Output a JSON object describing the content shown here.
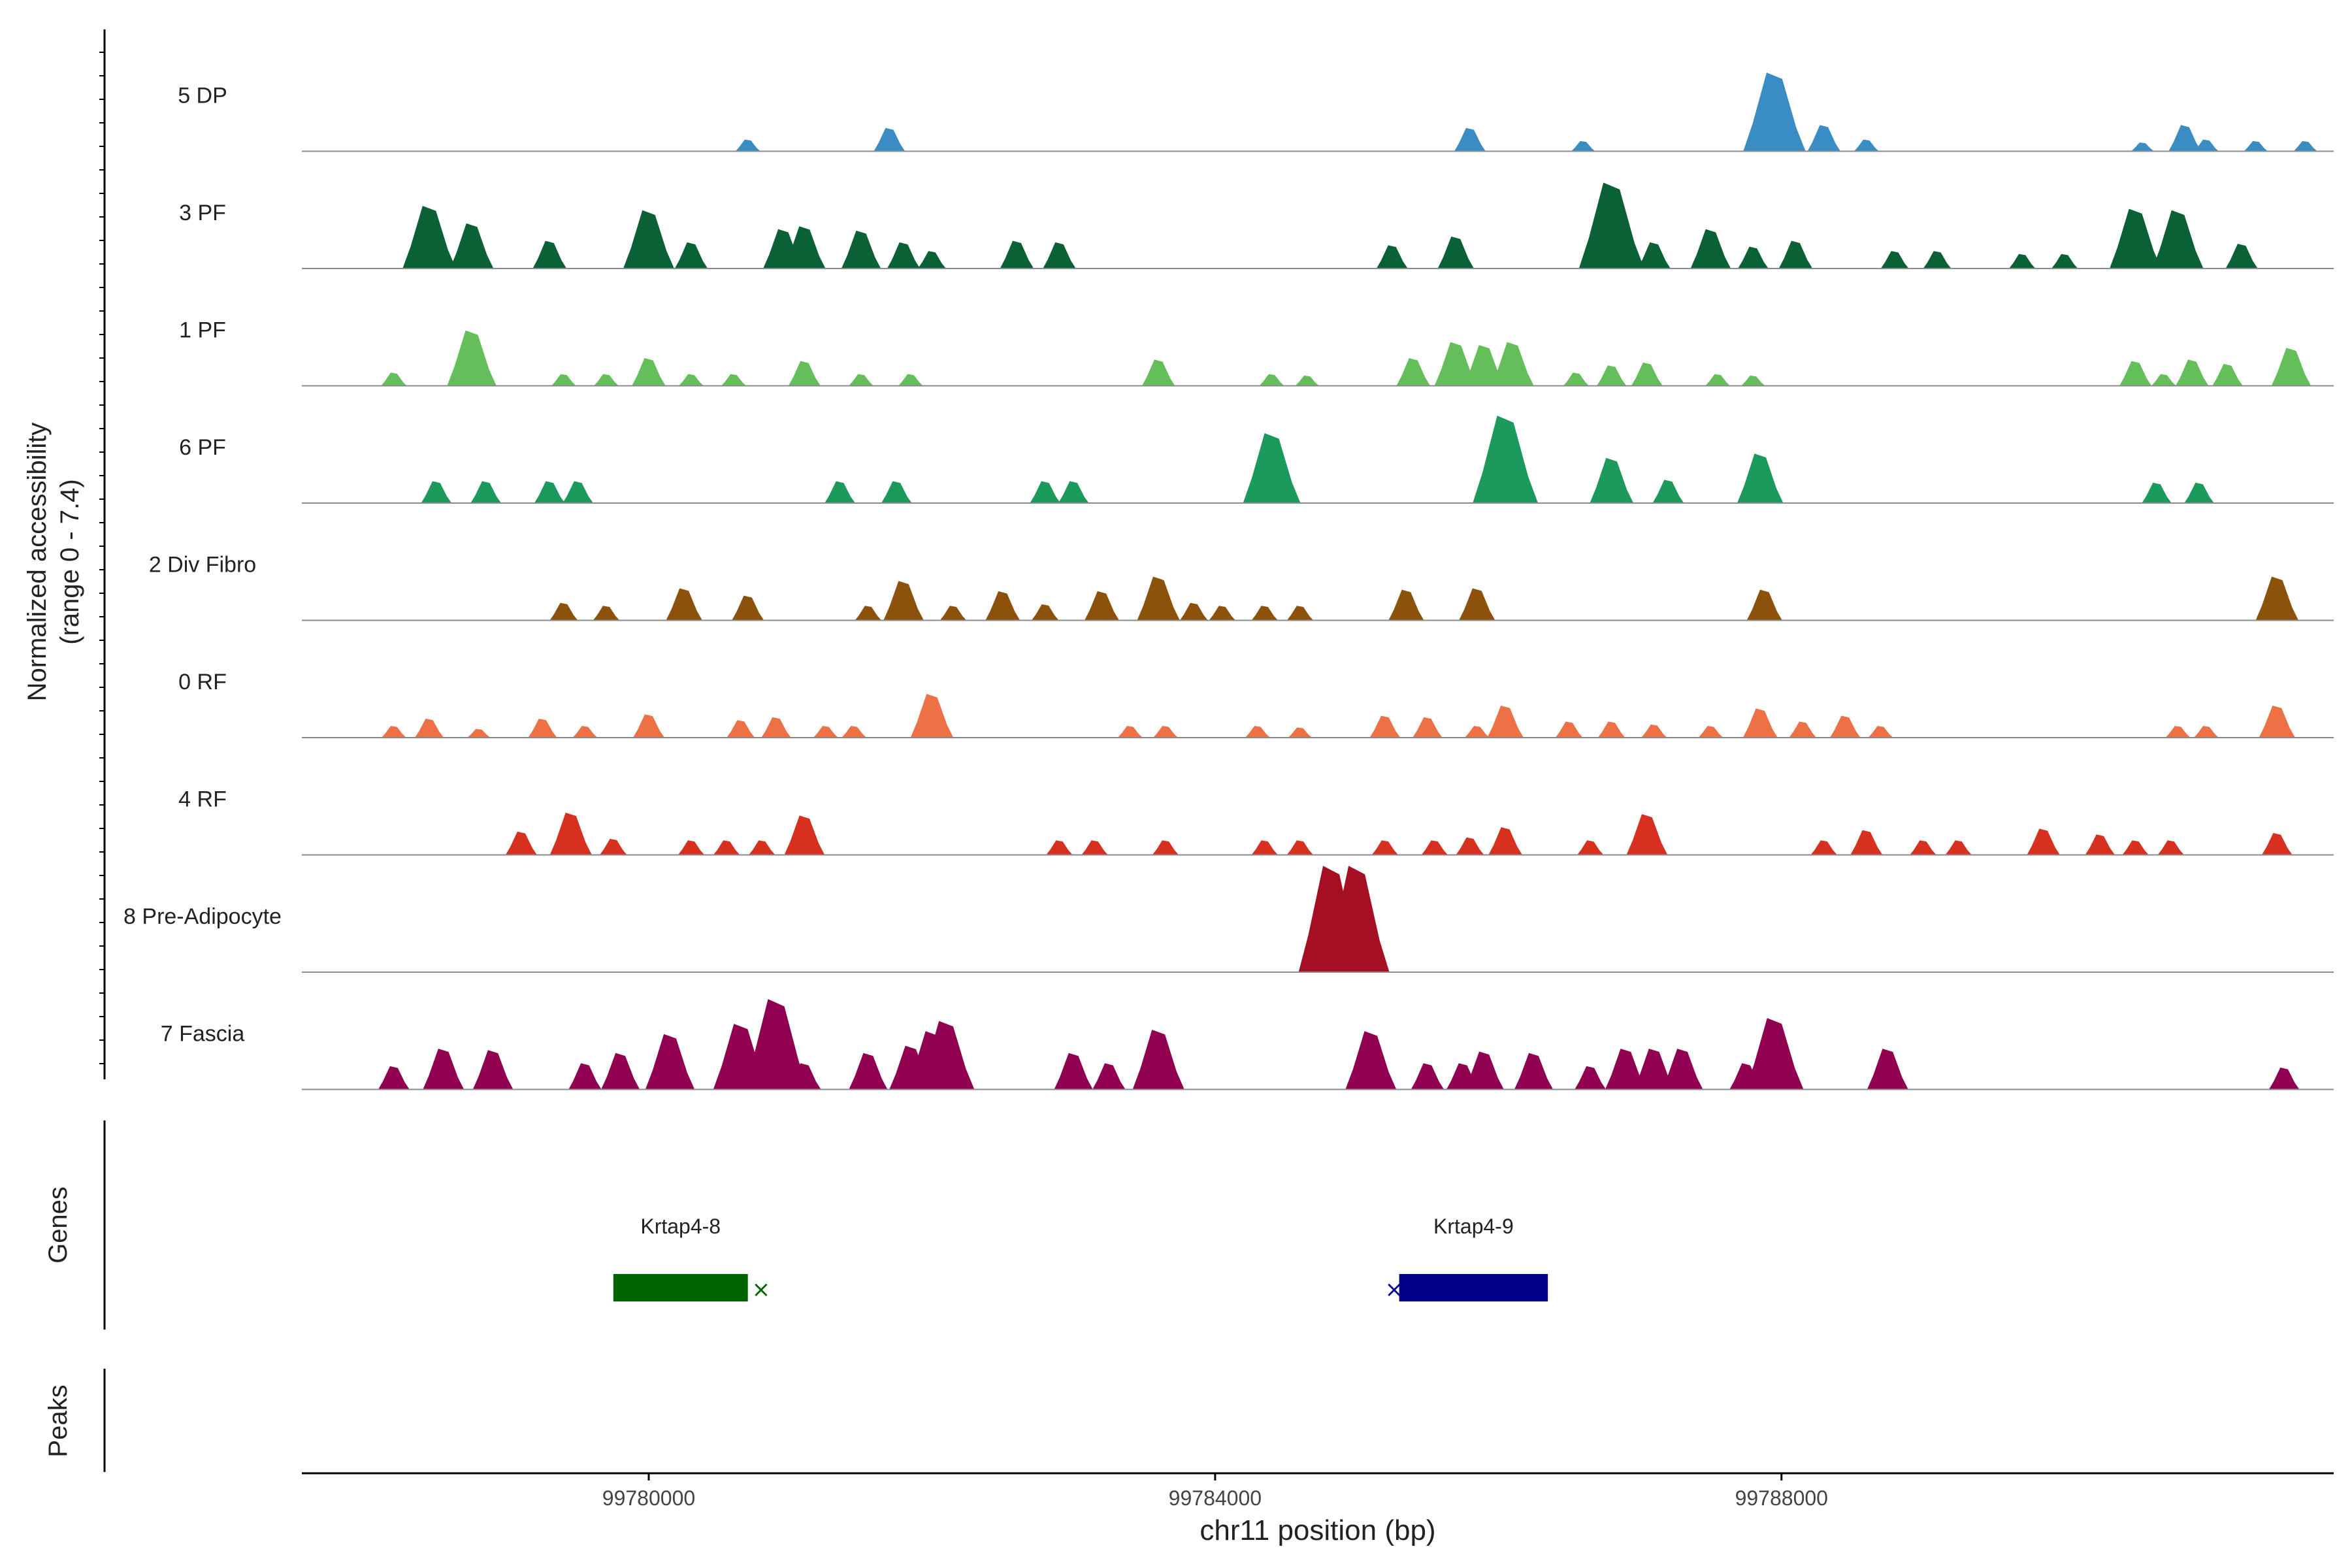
{
  "chart_data": {
    "type": "area",
    "title": "",
    "ylabel_line1": "Normalized accessibility",
    "ylabel_line2": "(range 0 - 7.4)",
    "xlabel": "chr11 position (bp)",
    "xlim": [
      99777550,
      99791900
    ],
    "ylim": [
      0,
      7.4
    ],
    "xticks": [
      99780000,
      99784000,
      99788000
    ],
    "xtick_labels": [
      "99780000",
      "99784000",
      "99788000"
    ],
    "genes_label": "Genes",
    "peaks_label": "Peaks",
    "series": [
      {
        "name": "5 DP",
        "color": "#3A8CC4",
        "peaks": [
          [
            99780700,
            0.8
          ],
          [
            99781700,
            1.6
          ],
          [
            99785800,
            1.6
          ],
          [
            99786600,
            0.7
          ],
          [
            99787950,
            5.4
          ],
          [
            99788300,
            1.8
          ],
          [
            99788600,
            0.8
          ],
          [
            99790550,
            0.6
          ],
          [
            99790850,
            1.8
          ],
          [
            99791000,
            0.8
          ],
          [
            99791350,
            0.7
          ],
          [
            99791700,
            0.7
          ]
        ]
      },
      {
        "name": "3 PF",
        "color": "#0A6135",
        "peaks": [
          [
            99778450,
            4.3
          ],
          [
            99778750,
            3.1
          ],
          [
            99779300,
            1.9
          ],
          [
            99780000,
            4.0
          ],
          [
            99780300,
            1.8
          ],
          [
            99780950,
            2.7
          ],
          [
            99781100,
            2.9
          ],
          [
            99781500,
            2.6
          ],
          [
            99781800,
            1.8
          ],
          [
            99782000,
            1.2
          ],
          [
            99782600,
            1.9
          ],
          [
            99782900,
            1.8
          ],
          [
            99785250,
            1.6
          ],
          [
            99785700,
            2.2
          ],
          [
            99786800,
            5.9
          ],
          [
            99787100,
            1.8
          ],
          [
            99787500,
            2.7
          ],
          [
            99787800,
            1.5
          ],
          [
            99788100,
            1.9
          ],
          [
            99788800,
            1.2
          ],
          [
            99789100,
            1.2
          ],
          [
            99789700,
            1.0
          ],
          [
            99790000,
            1.0
          ],
          [
            99790500,
            4.1
          ],
          [
            99790800,
            4.0
          ],
          [
            99791250,
            1.7
          ]
        ]
      },
      {
        "name": "1 PF",
        "color": "#64BE5A",
        "peaks": [
          [
            99778200,
            0.9
          ],
          [
            99778750,
            3.8
          ],
          [
            99779400,
            0.8
          ],
          [
            99779700,
            0.8
          ],
          [
            99780000,
            1.9
          ],
          [
            99780300,
            0.8
          ],
          [
            99780600,
            0.8
          ],
          [
            99781100,
            1.7
          ],
          [
            99781500,
            0.8
          ],
          [
            99781850,
            0.8
          ],
          [
            99783600,
            1.8
          ],
          [
            99784400,
            0.8
          ],
          [
            99784650,
            0.7
          ],
          [
            99785400,
            1.9
          ],
          [
            99785700,
            3.0
          ],
          [
            99785900,
            2.8
          ],
          [
            99786100,
            3.0
          ],
          [
            99786550,
            0.9
          ],
          [
            99786800,
            1.4
          ],
          [
            99787050,
            1.6
          ],
          [
            99787550,
            0.8
          ],
          [
            99787800,
            0.7
          ],
          [
            99790500,
            1.7
          ],
          [
            99790700,
            0.8
          ],
          [
            99790900,
            1.8
          ],
          [
            99791150,
            1.5
          ],
          [
            99791600,
            2.6
          ]
        ]
      },
      {
        "name": "6 PF",
        "color": "#1C9A5C",
        "peaks": [
          [
            99778500,
            1.5
          ],
          [
            99778850,
            1.5
          ],
          [
            99779300,
            1.5
          ],
          [
            99779500,
            1.5
          ],
          [
            99781350,
            1.5
          ],
          [
            99781750,
            1.5
          ],
          [
            99782800,
            1.5
          ],
          [
            99783000,
            1.5
          ],
          [
            99784400,
            4.8
          ],
          [
            99786050,
            6.0
          ],
          [
            99786800,
            3.1
          ],
          [
            99787200,
            1.6
          ],
          [
            99787850,
            3.4
          ],
          [
            99790650,
            1.4
          ],
          [
            99790950,
            1.4
          ]
        ]
      },
      {
        "name": "2 Div Fibro",
        "color": "#8C510A",
        "peaks": [
          [
            99779400,
            1.2
          ],
          [
            99779700,
            1.0
          ],
          [
            99780250,
            2.2
          ],
          [
            99780700,
            1.7
          ],
          [
            99781550,
            1.0
          ],
          [
            99781800,
            2.7
          ],
          [
            99782150,
            1.0
          ],
          [
            99782500,
            2.0
          ],
          [
            99782800,
            1.1
          ],
          [
            99783200,
            2.0
          ],
          [
            99783600,
            3.0
          ],
          [
            99783850,
            1.2
          ],
          [
            99784050,
            1.0
          ],
          [
            99784350,
            1.0
          ],
          [
            99784600,
            1.0
          ],
          [
            99785350,
            2.1
          ],
          [
            99785850,
            2.2
          ],
          [
            99787880,
            2.1
          ],
          [
            99791500,
            3.0
          ]
        ]
      },
      {
        "name": "0 RF",
        "color": "#EE7045",
        "peaks": [
          [
            99778200,
            0.8
          ],
          [
            99778450,
            1.3
          ],
          [
            99778800,
            0.6
          ],
          [
            99779250,
            1.3
          ],
          [
            99779550,
            0.8
          ],
          [
            99780000,
            1.6
          ],
          [
            99780650,
            1.2
          ],
          [
            99780900,
            1.4
          ],
          [
            99781250,
            0.8
          ],
          [
            99781450,
            0.8
          ],
          [
            99782000,
            3.0
          ],
          [
            99783400,
            0.8
          ],
          [
            99783650,
            0.8
          ],
          [
            99784300,
            0.8
          ],
          [
            99784600,
            0.7
          ],
          [
            99785200,
            1.5
          ],
          [
            99785500,
            1.4
          ],
          [
            99785850,
            0.8
          ],
          [
            99786050,
            2.2
          ],
          [
            99786500,
            1.1
          ],
          [
            99786800,
            1.1
          ],
          [
            99787100,
            0.9
          ],
          [
            99787500,
            0.8
          ],
          [
            99787850,
            2.0
          ],
          [
            99788150,
            1.1
          ],
          [
            99788450,
            1.5
          ],
          [
            99788700,
            0.8
          ],
          [
            99790800,
            0.8
          ],
          [
            99791000,
            0.8
          ],
          [
            99791500,
            2.2
          ]
        ]
      },
      {
        "name": "4 RF",
        "color": "#D7301F",
        "peaks": [
          [
            99779100,
            1.6
          ],
          [
            99779450,
            2.9
          ],
          [
            99779750,
            1.1
          ],
          [
            99780300,
            1.0
          ],
          [
            99780550,
            1.0
          ],
          [
            99780800,
            1.0
          ],
          [
            99781100,
            2.7
          ],
          [
            99782900,
            1.0
          ],
          [
            99783150,
            1.0
          ],
          [
            99783650,
            1.0
          ],
          [
            99784350,
            1.0
          ],
          [
            99784600,
            1.0
          ],
          [
            99785200,
            1.0
          ],
          [
            99785550,
            1.0
          ],
          [
            99785800,
            1.2
          ],
          [
            99786050,
            1.9
          ],
          [
            99786650,
            1.0
          ],
          [
            99787050,
            2.8
          ],
          [
            99788300,
            1.0
          ],
          [
            99788600,
            1.7
          ],
          [
            99789000,
            1.0
          ],
          [
            99789250,
            1.0
          ],
          [
            99789850,
            1.8
          ],
          [
            99790250,
            1.4
          ],
          [
            99790500,
            1.0
          ],
          [
            99790750,
            1.0
          ],
          [
            99791500,
            1.5
          ]
        ]
      },
      {
        "name": "8 Pre-Adipocyte",
        "color": "#A50F23",
        "peaks": [
          [
            99784820,
            7.3
          ],
          [
            99785000,
            7.3
          ]
        ]
      },
      {
        "name": "7 Fascia",
        "color": "#910050",
        "peaks": [
          [
            99778200,
            1.6
          ],
          [
            99778550,
            2.8
          ],
          [
            99778900,
            2.7
          ],
          [
            99779550,
            1.8
          ],
          [
            99779800,
            2.5
          ],
          [
            99780150,
            3.8
          ],
          [
            99780650,
            4.5
          ],
          [
            99780900,
            6.2
          ],
          [
            99781100,
            1.8
          ],
          [
            99781550,
            2.5
          ],
          [
            99781850,
            3.0
          ],
          [
            99782000,
            4.0
          ],
          [
            99782100,
            4.7
          ],
          [
            99783000,
            2.5
          ],
          [
            99783250,
            1.8
          ],
          [
            99783600,
            4.1
          ],
          [
            99785100,
            4.0
          ],
          [
            99785500,
            1.8
          ],
          [
            99785750,
            1.8
          ],
          [
            99785900,
            2.6
          ],
          [
            99786250,
            2.5
          ],
          [
            99786650,
            1.6
          ],
          [
            99786900,
            2.8
          ],
          [
            99787100,
            2.8
          ],
          [
            99787300,
            2.8
          ],
          [
            99787750,
            1.8
          ],
          [
            99787950,
            4.9
          ],
          [
            99788750,
            2.8
          ],
          [
            99791550,
            1.5
          ]
        ]
      }
    ],
    "genes": [
      {
        "name": "Krtap4-8",
        "start": 99779750,
        "end": 99780700,
        "color": "#006400",
        "strand_mark": "×"
      },
      {
        "name": "Krtap4-9",
        "start": 99785300,
        "end": 99786350,
        "color": "#00008B",
        "strand_mark": "×"
      }
    ]
  }
}
